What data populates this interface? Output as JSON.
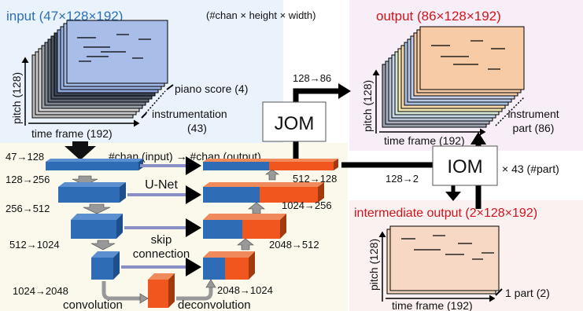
{
  "header": {
    "input_title": "input (47×128×192)",
    "dims_note": "(#chan × height × width)",
    "output_title": "output (86×128×192)",
    "intermediate_title": "intermediate output (2×128×192)"
  },
  "input_panel": {
    "pitch_label": "pitch (128)",
    "time_label": "time frame (192)",
    "piano_label": "piano score (4)",
    "instr_label_1": "instrumentation",
    "instr_label_2": "(43)"
  },
  "output_panel": {
    "pitch_label": "pitch (128)",
    "time_label": "time frame (192)",
    "part_label_1": "instrument",
    "part_label_2": "part (86)"
  },
  "intermediate_panel": {
    "pitch_label": "pitch (128)",
    "time_label": "time frame (192)",
    "part_label": "1 part (2)"
  },
  "jom": {
    "label": "JOM",
    "ratio": "128→86"
  },
  "iom": {
    "label": "IOM",
    "ratio": "128→2",
    "repeat": "× 43 (#part)"
  },
  "unet": {
    "label": "U-Net",
    "chan_note": "#chan (input) → #chan (output)",
    "skip_1": "skip",
    "skip_2": "connection",
    "conv_label": "convolution",
    "deconv_label": "deconvolution",
    "enc": [
      "47→128",
      "128→256",
      "256→512",
      "512→1024",
      "1024→2048"
    ],
    "dec": [
      "512→128",
      "1024→256",
      "2048→512",
      "2048→1024"
    ]
  }
}
